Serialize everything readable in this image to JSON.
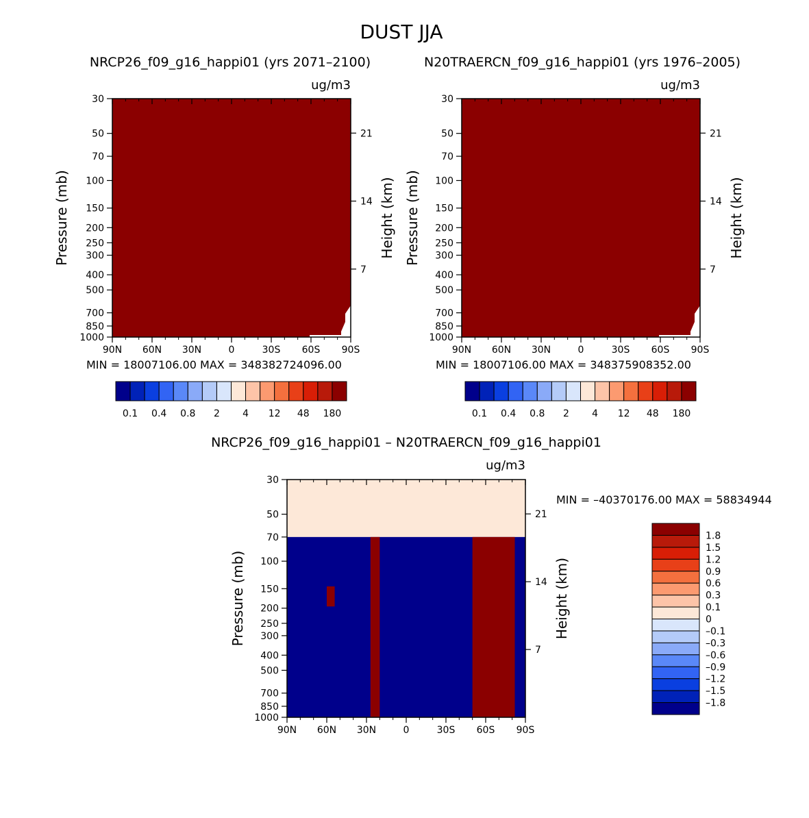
{
  "figure": {
    "title": "DUST JJA"
  },
  "colors": {
    "background": "#ffffff",
    "text": "#000000",
    "full_scale_red": "#8b0000",
    "deep_blue": "#00008b",
    "near_zero_cream": "#fde8d8"
  },
  "chart_data": [
    {
      "type": "heatmap",
      "title": "NRCP26_f09_g16_happi01 (yrs 2071–2100)",
      "units": "ug/m3",
      "ylabel": "Pressure (mb)",
      "ylabel_right": "Height (km)",
      "x_ticks": [
        "90N",
        "60N",
        "30N",
        "0",
        "30S",
        "60S",
        "90S"
      ],
      "x_values": [
        90,
        60,
        30,
        0,
        -30,
        -60,
        -90
      ],
      "y_ticks": [
        "30",
        "50",
        "70",
        "100",
        "150",
        "200",
        "250",
        "300",
        "400",
        "500",
        "700",
        "850",
        "1000"
      ],
      "y_values": [
        30,
        50,
        70,
        100,
        150,
        200,
        250,
        300,
        400,
        500,
        700,
        850,
        1000
      ],
      "ylim": [
        1000,
        30
      ],
      "y_scale": "log",
      "height_ticks": [
        "7",
        "14",
        "21"
      ],
      "height_values": [
        7,
        14,
        21
      ],
      "fill_level": "180",
      "stats_text": "MIN = 18007106.00   MAX = 348382724096.00",
      "stats": {
        "min": 18007106.0,
        "max": 348382724096.0
      },
      "colorbar": {
        "orientation": "horizontal",
        "labels": [
          "0.1",
          "0.4",
          "0.8",
          "2",
          "4",
          "12",
          "48",
          "180"
        ],
        "colors": [
          "#00008b",
          "#0022b8",
          "#0a3fe0",
          "#3264f4",
          "#5a88f8",
          "#8aaaf8",
          "#b4cbf8",
          "#d9e6fb",
          "#fde8d8",
          "#fdc4a8",
          "#fc9a70",
          "#f4703e",
          "#e84018",
          "#d81e06",
          "#b81a0a",
          "#8b0000"
        ]
      }
    },
    {
      "type": "heatmap",
      "title": "N20TRAERCN_f09_g16_happi01 (yrs 1976–2005)",
      "units": "ug/m3",
      "ylabel": "Pressure (mb)",
      "ylabel_right": "Height (km)",
      "x_ticks": [
        "90N",
        "60N",
        "30N",
        "0",
        "30S",
        "60S",
        "90S"
      ],
      "x_values": [
        90,
        60,
        30,
        0,
        -30,
        -60,
        -90
      ],
      "y_ticks": [
        "30",
        "50",
        "70",
        "100",
        "150",
        "200",
        "250",
        "300",
        "400",
        "500",
        "700",
        "850",
        "1000"
      ],
      "y_values": [
        30,
        50,
        70,
        100,
        150,
        200,
        250,
        300,
        400,
        500,
        700,
        850,
        1000
      ],
      "ylim": [
        1000,
        30
      ],
      "y_scale": "log",
      "height_ticks": [
        "7",
        "14",
        "21"
      ],
      "height_values": [
        7,
        14,
        21
      ],
      "fill_level": "180",
      "stats_text": "MIN = 18007106.00   MAX = 348375908352.00",
      "stats": {
        "min": 18007106.0,
        "max": 348375908352.0
      },
      "colorbar": {
        "orientation": "horizontal",
        "labels": [
          "0.1",
          "0.4",
          "0.8",
          "2",
          "4",
          "12",
          "48",
          "180"
        ],
        "colors": [
          "#00008b",
          "#0022b8",
          "#0a3fe0",
          "#3264f4",
          "#5a88f8",
          "#8aaaf8",
          "#b4cbf8",
          "#d9e6fb",
          "#fde8d8",
          "#fdc4a8",
          "#fc9a70",
          "#f4703e",
          "#e84018",
          "#d81e06",
          "#b81a0a",
          "#8b0000"
        ]
      }
    },
    {
      "type": "heatmap",
      "title": "NRCP26_f09_g16_happi01 – N20TRAERCN_f09_g16_happi01",
      "units": "ug/m3",
      "ylabel": "Pressure (mb)",
      "ylabel_right": "Height (km)",
      "x_ticks": [
        "90N",
        "60N",
        "30N",
        "0",
        "30S",
        "60S",
        "90S"
      ],
      "x_values": [
        90,
        60,
        30,
        0,
        -30,
        -60,
        -90
      ],
      "y_ticks": [
        "30",
        "50",
        "70",
        "100",
        "150",
        "200",
        "250",
        "300",
        "400",
        "500",
        "700",
        "850",
        "1000"
      ],
      "y_values": [
        30,
        50,
        70,
        100,
        150,
        200,
        250,
        300,
        400,
        500,
        700,
        850,
        1000
      ],
      "ylim": [
        1000,
        30
      ],
      "y_scale": "log",
      "height_ticks": [
        "7",
        "14",
        "21"
      ],
      "height_values": [
        7,
        14,
        21
      ],
      "stats_text": "MIN = –40370176.00   MAX = 58834944",
      "stats": {
        "min": -40370176.0,
        "max": 58834944
      },
      "regions": [
        {
          "level": "0",
          "lat_from": 90,
          "lat_to": -90,
          "p_from": 30,
          "p_to": 70
        },
        {
          "level": "-1.8",
          "lat_from": 90,
          "lat_to": -90,
          "p_from": 70,
          "p_to": 1000
        },
        {
          "level": "1.8",
          "lat_from": 27,
          "lat_to": 20,
          "p_from": 70,
          "p_to": 1000
        },
        {
          "level": "1.8",
          "lat_from": -50,
          "lat_to": -82,
          "p_from": 70,
          "p_to": 1000
        },
        {
          "level": "1.8",
          "lat_from": 60,
          "lat_to": 54,
          "p_from": 145,
          "p_to": 195
        }
      ],
      "colorbar": {
        "orientation": "vertical",
        "labels": [
          "1.8",
          "1.5",
          "1.2",
          "0.9",
          "0.6",
          "0.3",
          "0.1",
          "0",
          "–0.1",
          "–0.3",
          "–0.6",
          "–0.9",
          "–1.2",
          "–1.5",
          "–1.8"
        ],
        "colors": [
          "#8b0000",
          "#b81a0a",
          "#d81e06",
          "#e84018",
          "#f4703e",
          "#fc9a70",
          "#fdc4a8",
          "#fde8d8",
          "#d9e6fb",
          "#b4cbf8",
          "#8aaaf8",
          "#5a88f8",
          "#3264f4",
          "#0a3fe0",
          "#0022b8",
          "#00008b"
        ]
      }
    }
  ]
}
